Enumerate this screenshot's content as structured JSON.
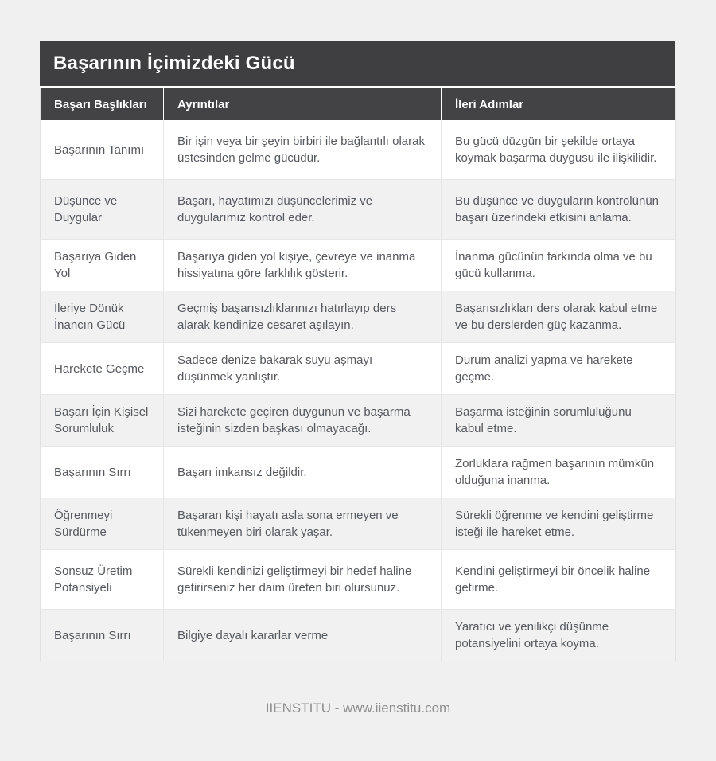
{
  "title_bar": {
    "title": "Başarının İçimizdeki Gücü",
    "background": "#3f3f41"
  },
  "table": {
    "columns": [
      "Başarı Başlıkları",
      "Ayrıntılar",
      "İleri Adımlar"
    ],
    "header_background": "#434345",
    "stripe_color": "#f1f1f1",
    "rows": [
      {
        "title": "Başarının Tanımı",
        "detail": "Bir işin veya bir şeyin birbiri ile bağlantılı olarak üstesinden gelme gücüdür.",
        "next": "Bu gücü düzgün bir şekilde ortaya koymak başarma duygusu ile ilişkilidir."
      },
      {
        "title": "Düşünce ve Duygular",
        "detail": "Başarı, hayatımızı düşüncelerimiz ve duygularımız kontrol eder.",
        "next": "Bu düşünce ve duyguların kontrolünün başarı üzerindeki etkisini anlama."
      },
      {
        "title": "Başarıya Giden Yol",
        "detail": "Başarıya giden yol kişiye, çevreye ve inanma hissiyatına göre farklılık gösterir.",
        "next": "İnanma gücünün farkında olma ve bu gücü kullanma."
      },
      {
        "title": "İleriye Dönük İnancın Gücü",
        "detail": "Geçmiş başarısızlıklarınızı hatırlayıp ders alarak kendinize cesaret aşılayın.",
        "next": "Başarısızlıkları ders olarak kabul etme ve bu derslerden güç kazanma."
      },
      {
        "title": "Harekete Geçme",
        "detail": "Sadece denize bakarak suyu aşmayı düşünmek yanlıştır.",
        "next": "Durum analizi yapma ve harekete geçme."
      },
      {
        "title": "Başarı İçin Kişisel Sorumluluk",
        "detail": "Sizi harekete geçiren duygunun ve başarma isteğinin sizden başkası olmayacağı.",
        "next": "Başarma isteğinin sorumluluğunu kabul etme."
      },
      {
        "title": "Başarının Sırrı",
        "detail": "Başarı imkansız değildir.",
        "next": "Zorluklara rağmen başarının mümkün olduğuna inanma."
      },
      {
        "title": "Öğrenmeyi Sürdürme",
        "detail": "Başaran kişi hayatı asla sona ermeyen ve tükenmeyen biri olarak yaşar.",
        "next": "Sürekli öğrenme ve kendini geliştirme isteği ile hareket etme."
      },
      {
        "title": "Sonsuz Üretim Potansiyeli",
        "detail": "Sürekli kendinizi geliştirmeyi bir hedef haline getirirseniz her daim üreten biri olursunuz.",
        "next": "Kendini geliştirmeyi bir öncelik haline getirme."
      },
      {
        "title": "Başarının Sırrı",
        "detail": "Bilgiye dayalı kararlar verme",
        "next": "Yaratıcı ve yenilikçi düşünme potansiyelini ortaya koyma."
      }
    ]
  },
  "footer": {
    "text": "IIENSTITU - www.iienstitu.com"
  }
}
